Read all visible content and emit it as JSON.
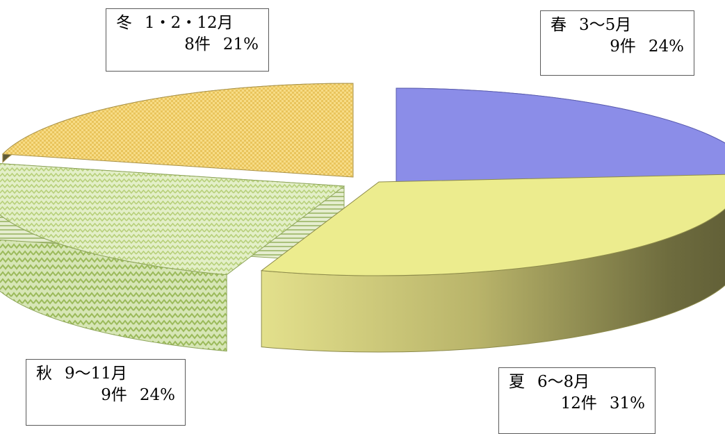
{
  "chart_data": {
    "type": "pie",
    "title": "",
    "style": "3d-exploded",
    "legend": "none",
    "slices": [
      {
        "season": "春",
        "months": "3〜5月",
        "count_label": "9件",
        "percent_label": "24%",
        "count": 9,
        "percent": 24,
        "color": "#8b8de8",
        "pattern": "solid"
      },
      {
        "season": "夏",
        "months": "6〜8月",
        "count_label": "12件",
        "percent_label": "31%",
        "count": 12,
        "percent": 31,
        "color": "#ecec8e",
        "pattern": "solid"
      },
      {
        "season": "秋",
        "months": "9〜11月",
        "count_label": "9件",
        "percent_label": "24%",
        "count": 9,
        "percent": 24,
        "color": "#d4e6b0",
        "pattern": "zigzag"
      },
      {
        "season": "冬",
        "months": "1・2・12月",
        "count_label": "8件",
        "percent_label": "21%",
        "count": 8,
        "percent": 21,
        "color": "#f5d77f",
        "pattern": "checker"
      }
    ]
  }
}
